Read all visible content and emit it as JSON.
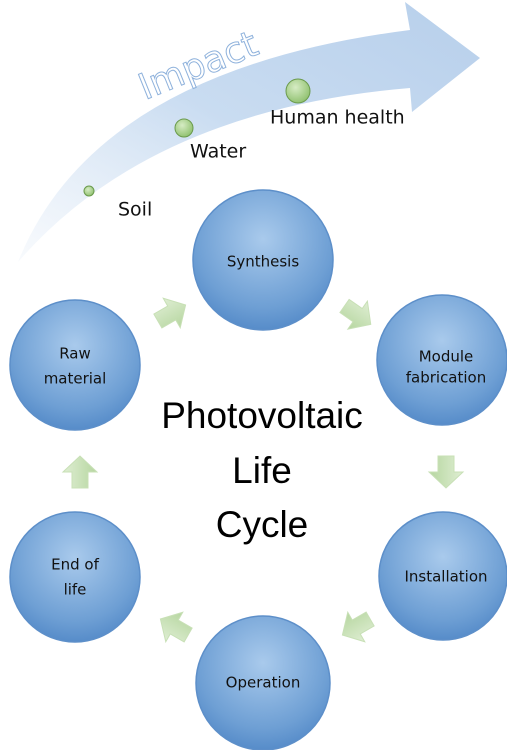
{
  "impact": {
    "title": "Impact",
    "items": [
      "Soil",
      "Water",
      "Human health"
    ]
  },
  "cycle": {
    "title_lines": [
      "Photovoltaic",
      "Life",
      "Cycle"
    ],
    "nodes": [
      {
        "lines": [
          "Synthesis"
        ]
      },
      {
        "lines": [
          "Module",
          "fabrication"
        ]
      },
      {
        "lines": [
          "Installation"
        ]
      },
      {
        "lines": [
          "Operation"
        ]
      },
      {
        "lines": [
          "End of",
          "life"
        ]
      },
      {
        "lines": [
          "Raw",
          "material"
        ]
      }
    ]
  }
}
